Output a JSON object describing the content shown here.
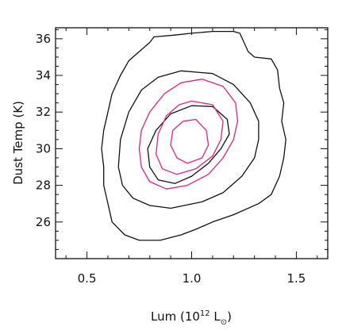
{
  "chart_data": {
    "type": "contour",
    "title": "",
    "xlabel": {
      "prefix": "Lum (10",
      "sup": "12",
      "mid": " L",
      "sub": "⊙",
      "suffix": ")"
    },
    "ylabel": "Dust Temp (K)",
    "xlim": [
      0.35,
      1.65
    ],
    "ylim": [
      24.0,
      36.6
    ],
    "x_ticks": [
      0.5,
      1.0,
      1.5
    ],
    "x_tick_labels": [
      "0.5",
      "1.0",
      "1.5"
    ],
    "x_minor_step": 0.1,
    "y_ticks": [
      26,
      28,
      30,
      32,
      34,
      36
    ],
    "y_tick_labels": [
      "26",
      "28",
      "30",
      "32",
      "34",
      "36"
    ],
    "y_minor_step": 0.5,
    "grid": false,
    "colors": {
      "black": "#111111",
      "magenta": "#e8207a"
    },
    "contours": [
      {
        "color": "#111111",
        "points": [
          [
            0.75,
            35.3
          ],
          [
            0.8,
            35.8
          ],
          [
            0.82,
            36.1
          ],
          [
            0.92,
            36.2
          ],
          [
            1.0,
            36.3
          ],
          [
            1.1,
            36.4
          ],
          [
            1.2,
            36.4
          ],
          [
            1.23,
            36.3
          ],
          [
            1.27,
            35.3
          ],
          [
            1.3,
            35.0
          ],
          [
            1.38,
            34.9
          ],
          [
            1.41,
            34.3
          ],
          [
            1.42,
            33.3
          ],
          [
            1.44,
            32.5
          ],
          [
            1.43,
            31.5
          ],
          [
            1.45,
            30.5
          ],
          [
            1.44,
            29.5
          ],
          [
            1.42,
            28.5
          ],
          [
            1.38,
            27.5
          ],
          [
            1.32,
            27.0
          ],
          [
            1.2,
            26.4
          ],
          [
            1.1,
            26.0
          ],
          [
            1.02,
            25.6
          ],
          [
            0.95,
            25.3
          ],
          [
            0.85,
            25.0
          ],
          [
            0.75,
            25.0
          ],
          [
            0.68,
            25.3
          ],
          [
            0.62,
            26.0
          ],
          [
            0.6,
            27.0
          ],
          [
            0.58,
            28.0
          ],
          [
            0.58,
            29.0
          ],
          [
            0.57,
            30.0
          ],
          [
            0.58,
            31.0
          ],
          [
            0.6,
            32.0
          ],
          [
            0.62,
            33.0
          ],
          [
            0.66,
            34.0
          ],
          [
            0.7,
            34.8
          ],
          [
            0.75,
            35.3
          ]
        ]
      },
      {
        "color": "#111111",
        "points": [
          [
            0.95,
            34.25
          ],
          [
            1.1,
            34.1
          ],
          [
            1.2,
            33.5
          ],
          [
            1.28,
            32.5
          ],
          [
            1.32,
            31.5
          ],
          [
            1.32,
            30.5
          ],
          [
            1.3,
            29.5
          ],
          [
            1.24,
            28.5
          ],
          [
            1.15,
            27.6
          ],
          [
            1.05,
            27.1
          ],
          [
            0.9,
            26.75
          ],
          [
            0.8,
            26.9
          ],
          [
            0.72,
            27.3
          ],
          [
            0.67,
            28.0
          ],
          [
            0.65,
            29.0
          ],
          [
            0.66,
            30.5
          ],
          [
            0.7,
            32.0
          ],
          [
            0.76,
            33.2
          ],
          [
            0.84,
            33.9
          ],
          [
            0.95,
            34.25
          ]
        ]
      },
      {
        "color": "#e8207a",
        "points": [
          [
            1.05,
            33.8
          ],
          [
            1.15,
            33.4
          ],
          [
            1.21,
            32.5
          ],
          [
            1.22,
            31.5
          ],
          [
            1.2,
            30.5
          ],
          [
            1.15,
            29.5
          ],
          [
            1.08,
            28.6
          ],
          [
            0.98,
            28.0
          ],
          [
            0.88,
            27.8
          ],
          [
            0.8,
            28.2
          ],
          [
            0.76,
            29.0
          ],
          [
            0.75,
            30.0
          ],
          [
            0.76,
            31.0
          ],
          [
            0.8,
            32.0
          ],
          [
            0.87,
            33.0
          ],
          [
            0.95,
            33.6
          ],
          [
            1.05,
            33.8
          ]
        ]
      },
      {
        "color": "#111111",
        "points": [
          [
            1.0,
            32.35
          ],
          [
            1.1,
            32.3
          ],
          [
            1.17,
            31.6
          ],
          [
            1.18,
            30.8
          ],
          [
            1.14,
            30.0
          ],
          [
            1.08,
            29.2
          ],
          [
            1.0,
            28.5
          ],
          [
            0.92,
            28.1
          ],
          [
            0.84,
            28.3
          ],
          [
            0.8,
            29.0
          ],
          [
            0.79,
            30.0
          ],
          [
            0.83,
            31.0
          ],
          [
            0.9,
            31.9
          ],
          [
            1.0,
            32.35
          ]
        ]
      },
      {
        "color": "#e8207a",
        "points": [
          [
            1.0,
            32.6
          ],
          [
            1.1,
            32.4
          ],
          [
            1.15,
            31.5
          ],
          [
            1.14,
            30.5
          ],
          [
            1.1,
            29.6
          ],
          [
            1.02,
            28.9
          ],
          [
            0.93,
            28.6
          ],
          [
            0.86,
            28.9
          ],
          [
            0.83,
            29.7
          ],
          [
            0.84,
            30.8
          ],
          [
            0.88,
            31.8
          ],
          [
            0.94,
            32.4
          ],
          [
            1.0,
            32.6
          ]
        ]
      },
      {
        "color": "#e8207a",
        "points": [
          [
            1.02,
            31.6
          ],
          [
            1.07,
            31.0
          ],
          [
            1.08,
            30.2
          ],
          [
            1.05,
            29.5
          ],
          [
            0.98,
            29.2
          ],
          [
            0.93,
            29.5
          ],
          [
            0.9,
            30.2
          ],
          [
            0.91,
            31.0
          ],
          [
            0.96,
            31.5
          ],
          [
            1.02,
            31.6
          ]
        ]
      }
    ]
  }
}
